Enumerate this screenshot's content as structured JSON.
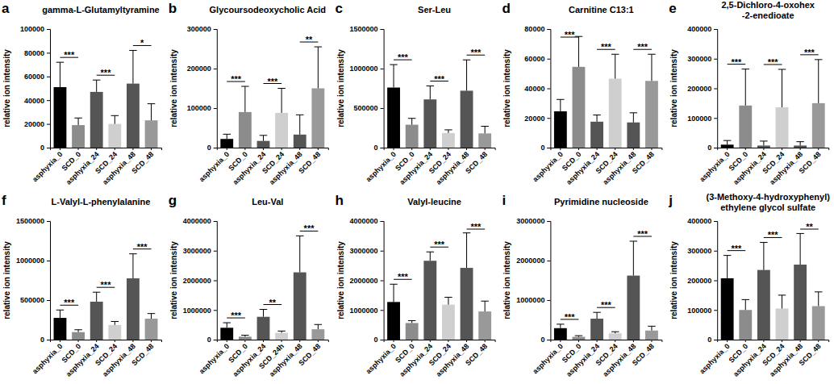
{
  "chart_data": [
    {
      "type": "bar",
      "panel_label": "a",
      "title": "gamma-L-Glutamyltyramine",
      "y_label": "relative ion intensity",
      "categories": [
        "asphyxia_0",
        "SCD_0",
        "asphyxia_24",
        "SCD_24",
        "asphyxia_48",
        "SCD_48"
      ],
      "values": [
        51000,
        19000,
        47000,
        20000,
        54000,
        23000
      ],
      "errors": [
        21000,
        6000,
        10000,
        7000,
        28000,
        14000
      ],
      "colors": [
        "#000000",
        "#8c8c8c",
        "#555555",
        "#cfcfcf",
        "#555555",
        "#999999"
      ],
      "ylim": [
        0,
        100000
      ],
      "yticks": [
        0,
        20000,
        40000,
        60000,
        80000,
        100000
      ],
      "annotations": [
        {
          "from": "asphyxia_0",
          "to": "SCD_0",
          "text": "***"
        },
        {
          "from": "asphyxia_24",
          "to": "SCD_24",
          "text": "***"
        },
        {
          "from": "asphyxia_48",
          "to": "SCD_48",
          "text": "*"
        }
      ]
    },
    {
      "type": "bar",
      "panel_label": "b",
      "title": "Glycoursodeoxycholic Acid",
      "y_label": "relative ion intensity",
      "categories": [
        "asphyxia_0",
        "SCD_0",
        "asphyxia_24",
        "SCD_24",
        "asphyxia_48",
        "SCD_48"
      ],
      "values": [
        22000,
        90000,
        17000,
        88000,
        33000,
        150000
      ],
      "errors": [
        12000,
        65000,
        14000,
        62000,
        50000,
        105000
      ],
      "colors": [
        "#000000",
        "#8c8c8c",
        "#555555",
        "#cfcfcf",
        "#555555",
        "#999999"
      ],
      "ylim": [
        0,
        300000
      ],
      "yticks": [
        0,
        100000,
        200000,
        300000
      ],
      "annotations": [
        {
          "from": "asphyxia_0",
          "to": "SCD_0",
          "text": "***"
        },
        {
          "from": "asphyxia_24",
          "to": "SCD_24",
          "text": "***"
        },
        {
          "from": "asphyxia_48",
          "to": "SCD_48",
          "text": "**"
        }
      ]
    },
    {
      "type": "bar",
      "panel_label": "c",
      "title": "Ser-Leu",
      "y_label": "relative ion intensity",
      "categories": [
        "asphyxia_0",
        "SCD_0",
        "asphyxia_24",
        "SCD_24",
        "asphyxia_48",
        "SCD_48"
      ],
      "values": [
        760000,
        290000,
        610000,
        185000,
        720000,
        180000
      ],
      "errors": [
        290000,
        80000,
        170000,
        40000,
        390000,
        90000
      ],
      "colors": [
        "#000000",
        "#8c8c8c",
        "#555555",
        "#cfcfcf",
        "#555555",
        "#999999"
      ],
      "ylim": [
        0,
        1500000
      ],
      "yticks": [
        0,
        500000,
        1000000,
        1500000
      ],
      "annotations": [
        {
          "from": "asphyxia_0",
          "to": "SCD_0",
          "text": "***"
        },
        {
          "from": "asphyxia_24",
          "to": "SCD_24",
          "text": "***"
        },
        {
          "from": "asphyxia_48",
          "to": "SCD_48",
          "text": "***"
        }
      ]
    },
    {
      "type": "bar",
      "panel_label": "d",
      "title": "Carnitine C13:1",
      "y_label": "relative ion intensity",
      "categories": [
        "asphyxia_0",
        "SCD_0",
        "asphyxia_24",
        "SCD_24",
        "asphyxia_48",
        "SCD_48"
      ],
      "values": [
        24500,
        54500,
        17500,
        46500,
        17000,
        45000
      ],
      "errors": [
        8000,
        20500,
        4500,
        16500,
        6500,
        18000
      ],
      "colors": [
        "#000000",
        "#8c8c8c",
        "#555555",
        "#cfcfcf",
        "#555555",
        "#999999"
      ],
      "ylim": [
        0,
        80000
      ],
      "yticks": [
        0,
        20000,
        40000,
        60000,
        80000
      ],
      "annotations": [
        {
          "from": "asphyxia_0",
          "to": "SCD_0",
          "text": "***"
        },
        {
          "from": "asphyxia_24",
          "to": "SCD_24",
          "text": "***"
        },
        {
          "from": "asphyxia_48",
          "to": "SCD_48",
          "text": "***"
        }
      ]
    },
    {
      "type": "bar",
      "panel_label": "e",
      "title": "2,5-Dichloro-4-oxohex\n-2-enedioate",
      "y_label": "relative ion intensity",
      "categories": [
        "asphyxia_0",
        "SCD_0",
        "asphyxia_24",
        "SCD_24",
        "asphyxia_48",
        "SCD_48"
      ],
      "values": [
        10000,
        142000,
        7000,
        136000,
        7000,
        150000
      ],
      "errors": [
        14000,
        123000,
        15000,
        128000,
        13000,
        147000
      ],
      "colors": [
        "#000000",
        "#8c8c8c",
        "#555555",
        "#cfcfcf",
        "#555555",
        "#999999"
      ],
      "ylim": [
        0,
        400000
      ],
      "yticks": [
        0,
        100000,
        200000,
        300000,
        400000
      ],
      "annotations": [
        {
          "from": "asphyxia_0",
          "to": "SCD_0",
          "text": "***"
        },
        {
          "from": "asphyxia_24",
          "to": "SCD_24",
          "text": "***"
        },
        {
          "from": "asphyxia_48",
          "to": "SCD_48",
          "text": "***"
        }
      ]
    },
    {
      "type": "bar",
      "panel_label": "f",
      "title": "L-Valyl-L-phenylalanine",
      "y_label": "relative ion intensity",
      "categories": [
        "asphyxia_0",
        "SCD_0",
        "asphyxia_24",
        "SCD_24",
        "asphyxia_48",
        "SCD_48"
      ],
      "values": [
        275000,
        95000,
        480000,
        185000,
        775000,
        265000
      ],
      "errors": [
        100000,
        30000,
        120000,
        45000,
        310000,
        65000
      ],
      "colors": [
        "#000000",
        "#8c8c8c",
        "#555555",
        "#cfcfcf",
        "#555555",
        "#999999"
      ],
      "ylim": [
        0,
        1500000
      ],
      "yticks": [
        0,
        500000,
        1000000,
        1500000
      ],
      "annotations": [
        {
          "from": "asphyxia_0",
          "to": "SCD_0",
          "text": "***"
        },
        {
          "from": "asphyxia_24",
          "to": "SCD_24",
          "text": "***"
        },
        {
          "from": "asphyxia_48",
          "to": "SCD_48",
          "text": "***"
        }
      ]
    },
    {
      "type": "bar",
      "panel_label": "g",
      "title": "Leu-Val",
      "y_label": "relative ion intensity",
      "categories": [
        "asphyxia_0",
        "SCD_0",
        "asphyxia_24",
        "SCD_24h",
        "asphyxia_48",
        "SCD_48"
      ],
      "values": [
        400000,
        100000,
        770000,
        230000,
        2270000,
        350000
      ],
      "errors": [
        170000,
        50000,
        250000,
        60000,
        1230000,
        160000
      ],
      "colors": [
        "#000000",
        "#8c8c8c",
        "#555555",
        "#cfcfcf",
        "#555555",
        "#999999"
      ],
      "ylim": [
        0,
        4000000
      ],
      "yticks": [
        0,
        1000000,
        2000000,
        3000000,
        4000000
      ],
      "annotations": [
        {
          "from": "asphyxia_0",
          "to": "SCD_0",
          "text": "***"
        },
        {
          "from": "asphyxia_24",
          "to": "SCD_24h",
          "text": "**"
        },
        {
          "from": "asphyxia_48",
          "to": "SCD_48",
          "text": "***"
        }
      ]
    },
    {
      "type": "bar",
      "panel_label": "h",
      "title": "Valyl-leucine",
      "y_label": "relative ion intensity",
      "categories": [
        "asphyxia_0",
        "SCD_0",
        "asphyxia_24",
        "SCD_24",
        "asphyxia_48",
        "SCD_48"
      ],
      "values": [
        1270000,
        560000,
        2660000,
        1180000,
        2420000,
        950000
      ],
      "errors": [
        600000,
        80000,
        300000,
        250000,
        1180000,
        350000
      ],
      "colors": [
        "#000000",
        "#8c8c8c",
        "#555555",
        "#cfcfcf",
        "#555555",
        "#999999"
      ],
      "ylim": [
        0,
        4000000
      ],
      "yticks": [
        0,
        1000000,
        2000000,
        3000000,
        4000000
      ],
      "annotations": [
        {
          "from": "asphyxia_0",
          "to": "SCD_0",
          "text": "***"
        },
        {
          "from": "asphyxia_24",
          "to": "SCD_24",
          "text": "***"
        },
        {
          "from": "asphyxia_48",
          "to": "SCD_48",
          "text": "***"
        }
      ]
    },
    {
      "type": "bar",
      "panel_label": "i",
      "title": "Pyrimidine nucleoside",
      "y_label": "relative ion intensity",
      "categories": [
        "asphyxia_0",
        "SCD_0",
        "asphyxia_24",
        "SCD_24",
        "asphyxia_48",
        "SCD_48"
      ],
      "values": [
        290000,
        70000,
        530000,
        160000,
        1620000,
        230000
      ],
      "errors": [
        100000,
        30000,
        160000,
        40000,
        870000,
        110000
      ],
      "colors": [
        "#000000",
        "#8c8c8c",
        "#555555",
        "#cfcfcf",
        "#555555",
        "#999999"
      ],
      "ylim": [
        0,
        3000000
      ],
      "yticks": [
        0,
        1000000,
        2000000,
        3000000
      ],
      "annotations": [
        {
          "from": "asphyxia_0",
          "to": "SCD_0",
          "text": "***"
        },
        {
          "from": "asphyxia_24",
          "to": "SCD_24",
          "text": "***"
        },
        {
          "from": "asphyxia_48",
          "to": "SCD_48",
          "text": "***"
        }
      ]
    },
    {
      "type": "bar",
      "panel_label": "j",
      "title": "(3-Methoxy-4-hydroxyphenyl)\nethylene glycol sulfate",
      "y_label": "relative ion intensity",
      "categories": [
        "asphyxia_0",
        "SCD_0",
        "asphyxia_24",
        "SCD_24",
        "asphyxia_48",
        "SCD_48"
      ],
      "values": [
        207000,
        100000,
        235000,
        105000,
        253000,
        113000
      ],
      "errors": [
        77000,
        35000,
        93000,
        45000,
        105000,
        48000
      ],
      "colors": [
        "#000000",
        "#8c8c8c",
        "#555555",
        "#cfcfcf",
        "#555555",
        "#999999"
      ],
      "ylim": [
        0,
        400000
      ],
      "yticks": [
        0,
        100000,
        200000,
        300000,
        400000
      ],
      "annotations": [
        {
          "from": "asphyxia_0",
          "to": "SCD_0",
          "text": "***"
        },
        {
          "from": "asphyxia_24",
          "to": "SCD_24",
          "text": "***"
        },
        {
          "from": "asphyxia_48",
          "to": "SCD_48",
          "text": "**"
        }
      ]
    }
  ]
}
